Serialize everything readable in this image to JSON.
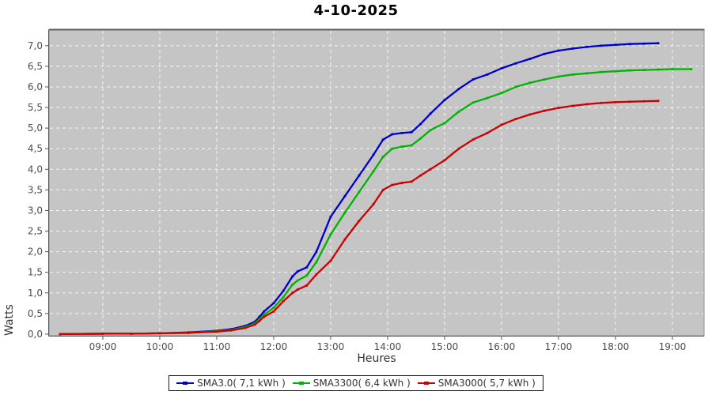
{
  "title": "4-10-2025",
  "axes": {
    "x_label": "Heures",
    "y_label": "Watts"
  },
  "colors": {
    "plot_bg": "#c5c5c5",
    "plot_outline": "#8e8e8e",
    "plot_top_border": "#5f5f5f",
    "grid": "#ffffff",
    "axis_line": "#555555",
    "tick_text": "#4d4d4d",
    "axis_title_text": "#333333",
    "title_text": "#000000",
    "legend_border": "#1a1a1a",
    "series_blue": "#0000cc",
    "series_green": "#00b300",
    "series_red": "#cc0000"
  },
  "chart_data": {
    "type": "line",
    "title": "4-10-2025",
    "xlabel": "Heures",
    "ylabel": "Watts",
    "grid": true,
    "legend_position": "bottom",
    "xlim_hours": [
      8.056,
      19.556
    ],
    "ylim": [
      -0.04,
      7.38
    ],
    "x_tick_hours": [
      9,
      10,
      11,
      12,
      13,
      14,
      15,
      16,
      17,
      18,
      19
    ],
    "x_tick_labels": [
      "09:00",
      "10:00",
      "11:00",
      "12:00",
      "13:00",
      "14:00",
      "15:00",
      "16:00",
      "17:00",
      "18:00",
      "19:00"
    ],
    "y_tick_values": [
      0,
      0.5,
      1,
      1.5,
      2,
      2.5,
      3,
      3.5,
      4,
      4.5,
      5,
      5.5,
      6,
      6.5,
      7
    ],
    "y_tick_labels": [
      "0,0",
      "0,5",
      "1,0",
      "1,5",
      "2,0",
      "2,5",
      "3,0",
      "3,5",
      "4,0",
      "4,5",
      "5,0",
      "5,5",
      "6,0",
      "6,5",
      "7,0"
    ],
    "series": [
      {
        "name": "SMA3.0( 7,1 kWh )",
        "total_kwh": "7,1",
        "color": "#0000cc",
        "x": [
          8.25,
          9.0,
          9.5,
          10.0,
          10.5,
          11.0,
          11.25,
          11.5,
          11.67,
          11.75,
          11.83,
          12.0,
          12.17,
          12.33,
          12.42,
          12.58,
          12.75,
          13.0,
          13.25,
          13.5,
          13.75,
          13.92,
          14.08,
          14.25,
          14.42,
          14.58,
          14.75,
          15.0,
          15.25,
          15.5,
          15.75,
          16.0,
          16.25,
          16.5,
          16.75,
          17.0,
          17.25,
          17.5,
          17.75,
          18.0,
          18.25,
          18.5,
          18.75
        ],
        "values": [
          0.0,
          0.01,
          0.01,
          0.02,
          0.04,
          0.08,
          0.12,
          0.2,
          0.3,
          0.42,
          0.55,
          0.75,
          1.05,
          1.4,
          1.52,
          1.62,
          2.0,
          2.85,
          3.35,
          3.85,
          4.35,
          4.72,
          4.85,
          4.88,
          4.9,
          5.1,
          5.35,
          5.68,
          5.95,
          6.18,
          6.3,
          6.45,
          6.57,
          6.68,
          6.8,
          6.88,
          6.93,
          6.97,
          7.0,
          7.02,
          7.04,
          7.05,
          7.06
        ]
      },
      {
        "name": "SMA3300( 6,4 kWh )",
        "total_kwh": "6,4",
        "color": "#00b300",
        "x": [
          8.25,
          9.0,
          9.5,
          10.0,
          10.5,
          11.0,
          11.25,
          11.5,
          11.67,
          11.75,
          11.83,
          12.0,
          12.17,
          12.33,
          12.42,
          12.58,
          12.75,
          13.0,
          13.25,
          13.5,
          13.75,
          13.92,
          14.08,
          14.25,
          14.42,
          14.58,
          14.75,
          15.0,
          15.25,
          15.5,
          15.75,
          16.0,
          16.25,
          16.5,
          16.75,
          17.0,
          17.25,
          17.5,
          17.75,
          18.0,
          18.25,
          18.5,
          18.75,
          19.0,
          19.33
        ],
        "values": [
          0.0,
          0.01,
          0.01,
          0.02,
          0.03,
          0.07,
          0.1,
          0.17,
          0.26,
          0.36,
          0.47,
          0.64,
          0.9,
          1.2,
          1.3,
          1.42,
          1.75,
          2.42,
          2.95,
          3.45,
          3.95,
          4.3,
          4.5,
          4.55,
          4.58,
          4.75,
          4.95,
          5.12,
          5.4,
          5.62,
          5.73,
          5.85,
          6.0,
          6.1,
          6.18,
          6.25,
          6.3,
          6.33,
          6.36,
          6.38,
          6.4,
          6.41,
          6.42,
          6.43,
          6.43
        ]
      },
      {
        "name": "SMA3000( 5,7 kWh )",
        "total_kwh": "5,7",
        "color": "#cc0000",
        "x": [
          8.25,
          9.0,
          9.5,
          10.0,
          10.5,
          11.0,
          11.25,
          11.5,
          11.67,
          11.75,
          11.83,
          12.0,
          12.17,
          12.33,
          12.42,
          12.58,
          12.75,
          13.0,
          13.25,
          13.5,
          13.75,
          13.92,
          14.08,
          14.25,
          14.42,
          14.58,
          14.75,
          15.0,
          15.25,
          15.5,
          15.75,
          16.0,
          16.25,
          16.5,
          16.75,
          17.0,
          17.25,
          17.5,
          17.75,
          18.0,
          18.25,
          18.5,
          18.75
        ],
        "values": [
          0.0,
          0.01,
          0.01,
          0.02,
          0.03,
          0.06,
          0.09,
          0.15,
          0.23,
          0.32,
          0.42,
          0.55,
          0.8,
          1.0,
          1.08,
          1.18,
          1.45,
          1.78,
          2.3,
          2.75,
          3.15,
          3.5,
          3.62,
          3.67,
          3.7,
          3.85,
          4.0,
          4.22,
          4.5,
          4.72,
          4.88,
          5.08,
          5.22,
          5.33,
          5.42,
          5.49,
          5.54,
          5.58,
          5.61,
          5.63,
          5.64,
          5.65,
          5.66
        ]
      }
    ]
  }
}
